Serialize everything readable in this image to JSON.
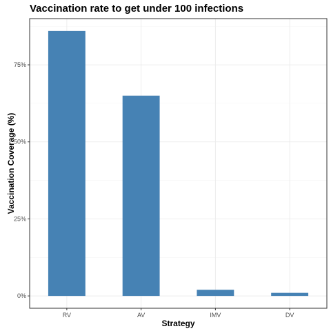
{
  "chart_data": {
    "type": "bar",
    "title": "Vaccination rate to get under 100 infections",
    "xlabel": "Strategy",
    "ylabel": "Vaccination Coverage (%)",
    "categories": [
      "RV",
      "AV",
      "IMV",
      "DV"
    ],
    "values": [
      86,
      65,
      2,
      1
    ],
    "ylim": [
      -4,
      90
    ],
    "yticks": [
      0,
      25,
      50,
      75
    ],
    "ytick_labels": [
      "0%",
      "25%",
      "50%",
      "75%"
    ],
    "grid": true,
    "bar_color": "#4682B4",
    "theme": "bw"
  }
}
